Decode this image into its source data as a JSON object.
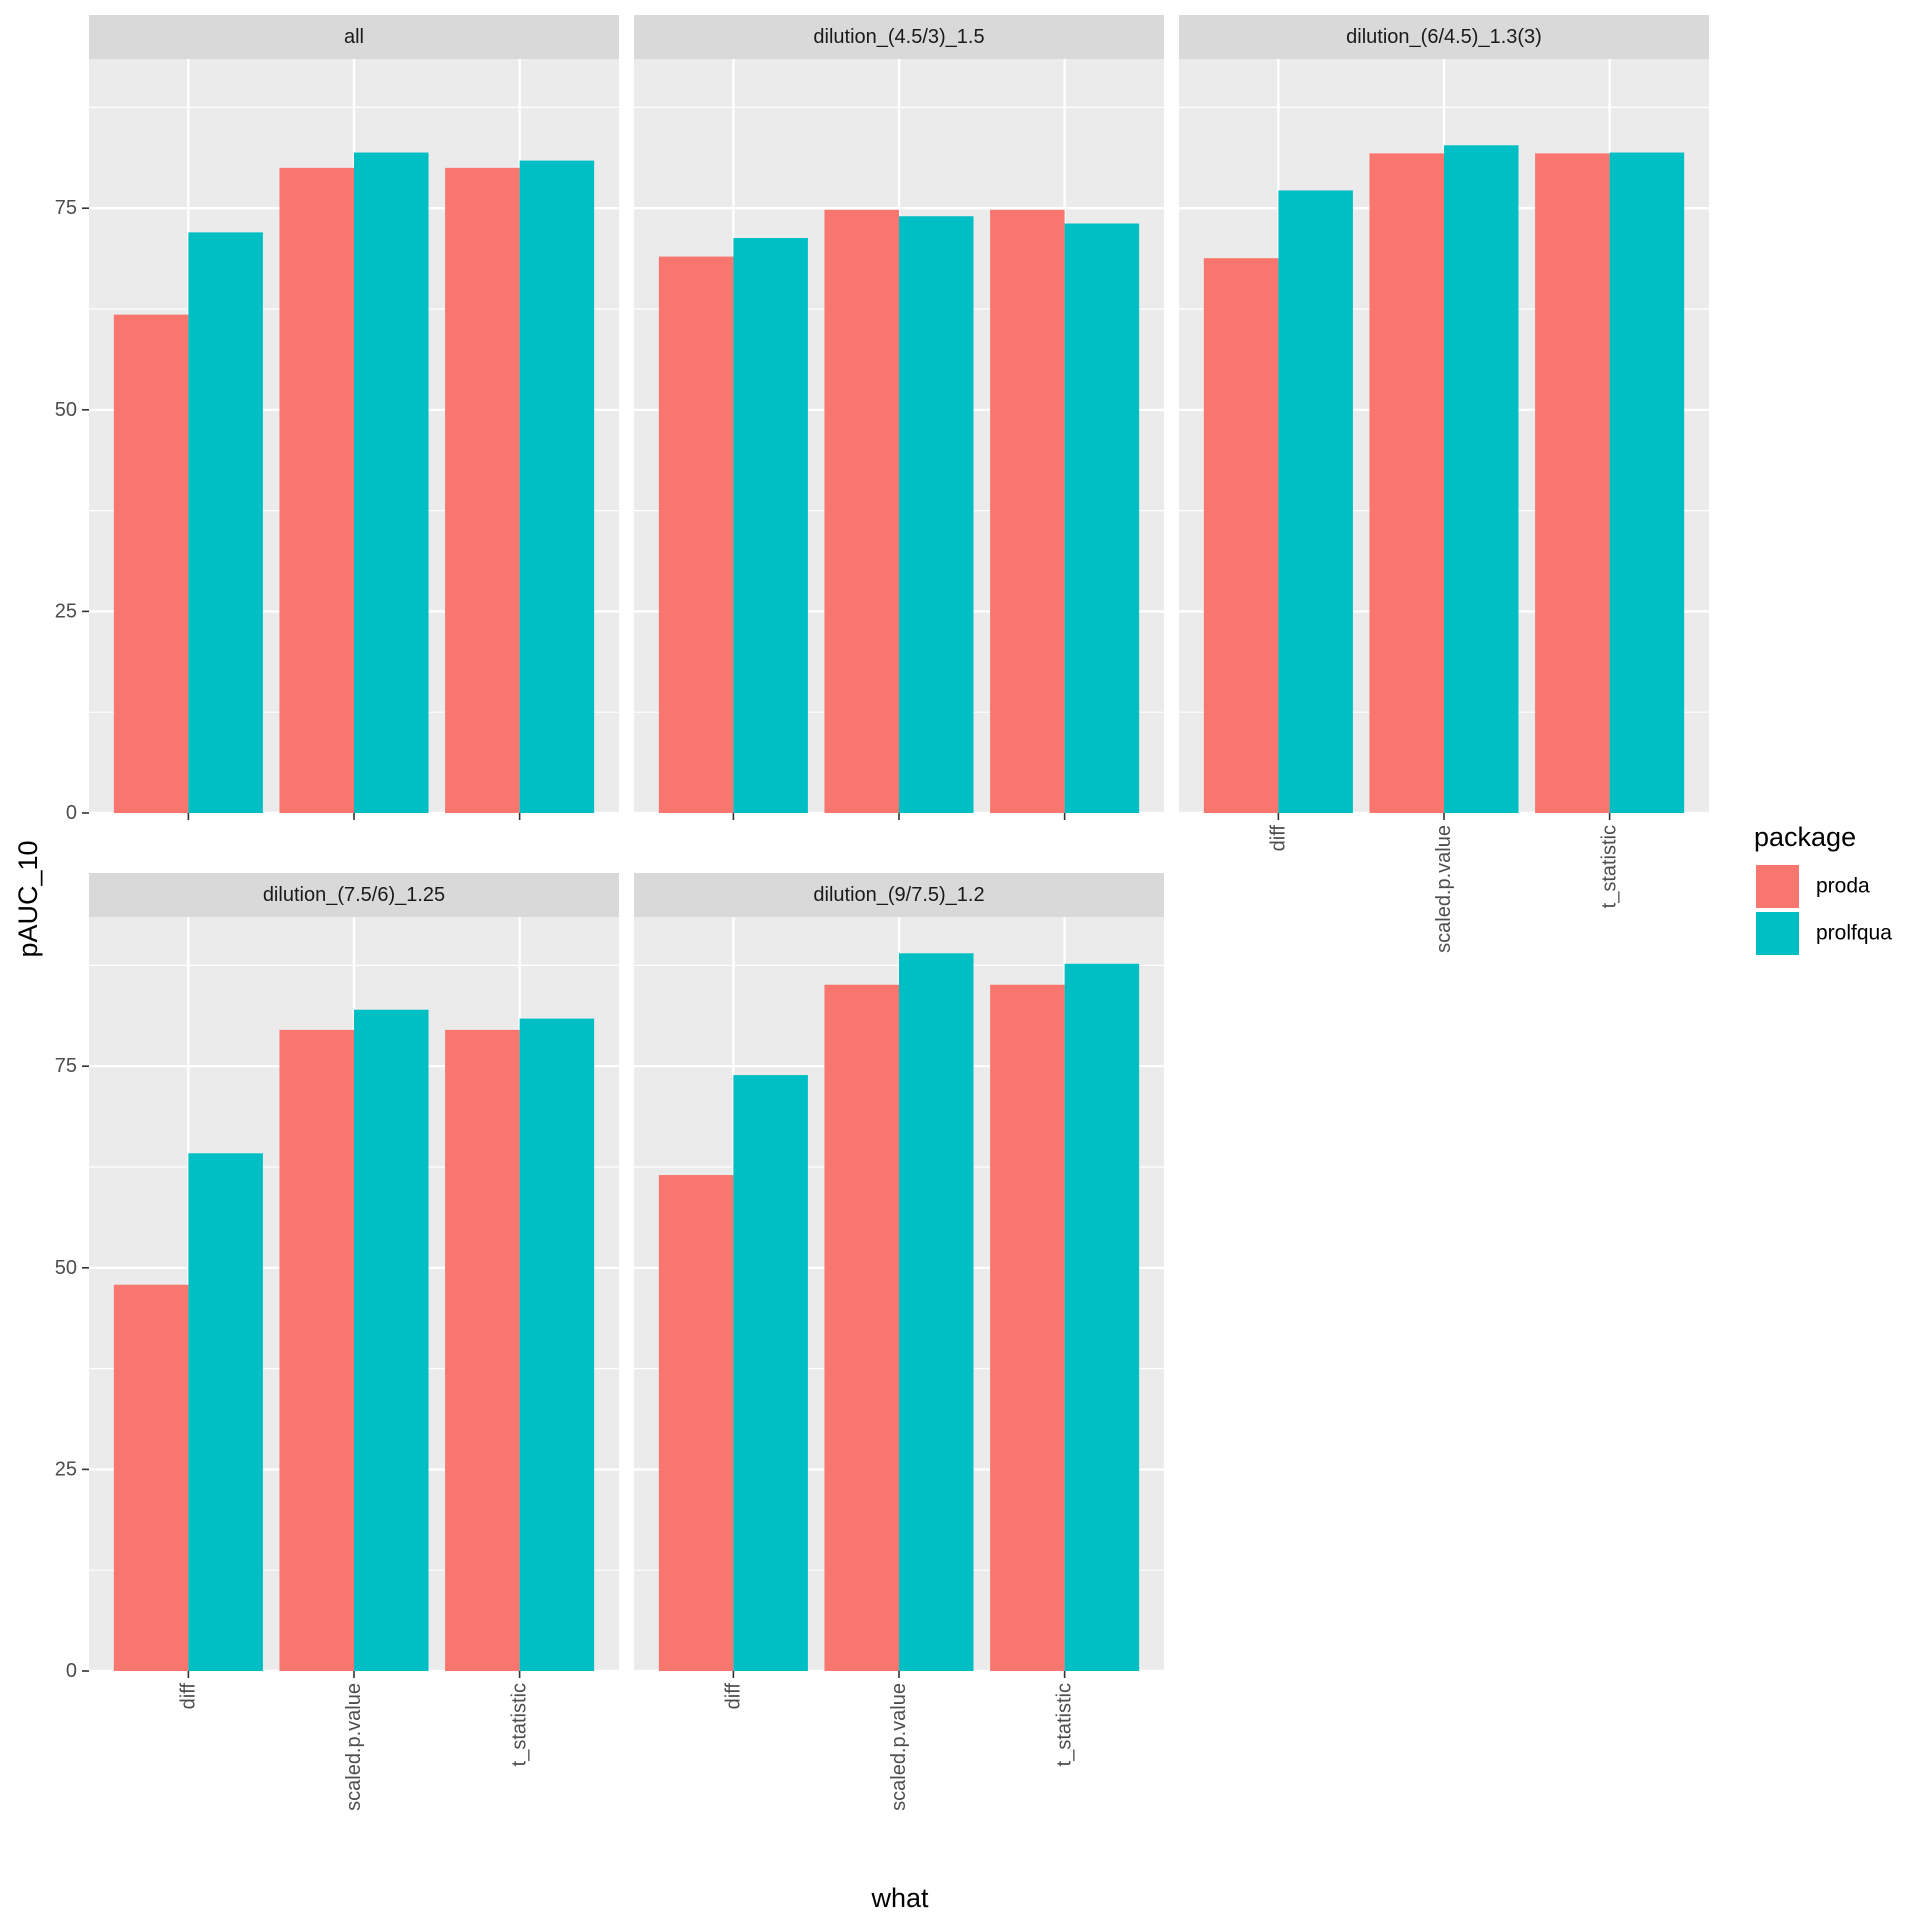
{
  "chart_data": {
    "type": "bar",
    "ylabel": "pAUC_10",
    "xlabel": "what",
    "categories": [
      "diff",
      "scaled.p.value",
      "t_statistic"
    ],
    "ylim": [
      0,
      93.5
    ],
    "yticks": [
      0,
      25,
      50,
      75
    ],
    "grid": true,
    "legend": {
      "title": "package",
      "placement": "right",
      "entries": [
        "proda",
        "prolfqua"
      ]
    },
    "colors": {
      "proda": "#F8766D",
      "prolfqua": "#00BFC4"
    },
    "facets": [
      {
        "title": "all",
        "series": [
          {
            "name": "proda",
            "values": [
              61.8,
              80.0,
              80.0
            ]
          },
          {
            "name": "prolfqua",
            "values": [
              72.0,
              81.9,
              80.9
            ]
          }
        ]
      },
      {
        "title": "dilution_(4.5/3)_1.5",
        "series": [
          {
            "name": "proda",
            "values": [
              69.0,
              74.8,
              74.8
            ]
          },
          {
            "name": "prolfqua",
            "values": [
              71.3,
              74.0,
              73.1
            ]
          }
        ]
      },
      {
        "title": "dilution_(6/4.5)_1.3(3)",
        "series": [
          {
            "name": "proda",
            "values": [
              68.8,
              81.8,
              81.8
            ]
          },
          {
            "name": "prolfqua",
            "values": [
              77.2,
              82.8,
              81.9
            ]
          }
        ]
      },
      {
        "title": "dilution_(7.5/6)_1.25",
        "series": [
          {
            "name": "proda",
            "values": [
              47.9,
              79.5,
              79.5
            ]
          },
          {
            "name": "prolfqua",
            "values": [
              64.2,
              82.0,
              80.9
            ]
          }
        ]
      },
      {
        "title": "dilution_(9/7.5)_1.2",
        "series": [
          {
            "name": "proda",
            "values": [
              61.5,
              85.1,
              85.1
            ]
          },
          {
            "name": "prolfqua",
            "values": [
              73.9,
              89.0,
              87.7
            ]
          }
        ]
      }
    ]
  }
}
